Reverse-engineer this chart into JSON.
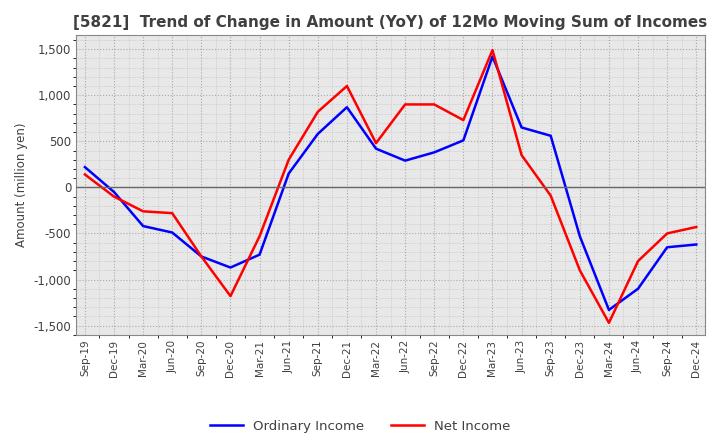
{
  "title": "[5821]  Trend of Change in Amount (YoY) of 12Mo Moving Sum of Incomes",
  "ylabel": "Amount (million yen)",
  "x_labels": [
    "Sep-19",
    "Dec-19",
    "Mar-20",
    "Jun-20",
    "Sep-20",
    "Dec-20",
    "Mar-21",
    "Jun-21",
    "Sep-21",
    "Dec-21",
    "Mar-22",
    "Jun-22",
    "Sep-22",
    "Dec-22",
    "Mar-23",
    "Jun-23",
    "Sep-23",
    "Dec-23",
    "Mar-24",
    "Jun-24",
    "Sep-24",
    "Dec-24"
  ],
  "ordinary_income": [
    220,
    -50,
    -420,
    -490,
    -750,
    -870,
    -730,
    150,
    580,
    870,
    420,
    290,
    380,
    510,
    1420,
    650,
    560,
    -530,
    -1330,
    -1100,
    -650,
    -620
  ],
  "net_income": [
    140,
    -100,
    -260,
    -280,
    -750,
    -1180,
    -530,
    300,
    820,
    1100,
    480,
    900,
    900,
    730,
    1490,
    350,
    -90,
    -900,
    -1470,
    -800,
    -500,
    -430
  ],
  "ordinary_color": "#0000ff",
  "net_color": "#ff0000",
  "bg_color": "#ffffff",
  "plot_bg_color": "#e8e8e8",
  "ylim": [
    -1600,
    1650
  ],
  "yticks": [
    -1500,
    -1000,
    -500,
    0,
    500,
    1000,
    1500
  ],
  "title_color": "#404040",
  "legend_labels": [
    "Ordinary Income",
    "Net Income"
  ]
}
